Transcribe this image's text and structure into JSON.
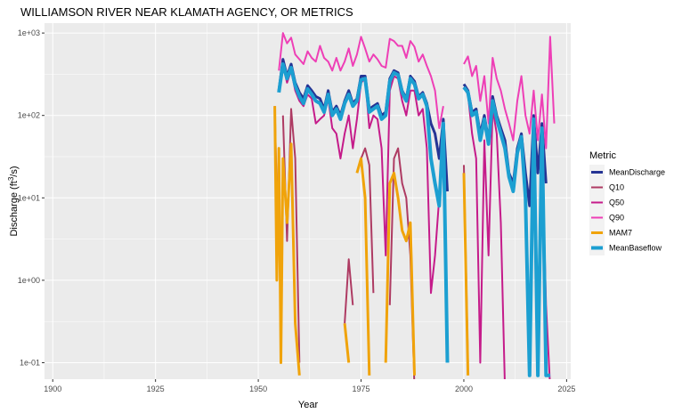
{
  "chart_data": {
    "type": "line",
    "title": "WILLIAMSON RIVER NEAR KLAMATH AGENCY, OR  METRICS",
    "xlabel": "Year",
    "ylabel": "Discharge (ft3/s)",
    "ylabel_parts": {
      "main": "Discharge (ft",
      "sup": "3",
      "tail": "/s)"
    },
    "xlim": [
      1898,
      2026
    ],
    "ylim_log10": [
      -1.2,
      3.12
    ],
    "y_scale": "log10",
    "grid": true,
    "legend_position": "right",
    "legend_title": "Metric",
    "x_ticks": [
      1900,
      1925,
      1950,
      1975,
      2000,
      2025
    ],
    "x_tick_labels": [
      "1900",
      "1925",
      "1950",
      "1975",
      "2000",
      "2025"
    ],
    "y_ticks": [
      0.1,
      1,
      10,
      100,
      1000
    ],
    "y_tick_labels": [
      "1e-01",
      "1e+00",
      "1e+01",
      "1e+02",
      "1e+03"
    ],
    "series": [
      {
        "name": "MeanDischarge",
        "color": "#253494",
        "width": 3,
        "x": [
          1955,
          1956,
          1957,
          1958,
          1959,
          1960,
          1961,
          1962,
          1963,
          1964,
          1965,
          1966,
          1967,
          1968,
          1969,
          1970,
          1971,
          1972,
          1973,
          1974,
          1975,
          1976,
          1977,
          1978,
          1979,
          1980,
          1981,
          1982,
          1983,
          1984,
          1985,
          1986,
          1987,
          1988,
          1989,
          1990,
          1991,
          1992,
          1993,
          1994,
          1995,
          1996,
          1997,
          1998,
          1999,
          2000,
          2001,
          2002,
          2003,
          2004,
          2005,
          2006,
          2007,
          2008,
          2009,
          2010,
          2011,
          2012,
          2013,
          2014,
          2015,
          2016,
          2017,
          2018,
          2019,
          2020,
          2021,
          2022
        ],
        "y": [
          200,
          480,
          300,
          420,
          250,
          190,
          160,
          230,
          200,
          170,
          160,
          120,
          200,
          110,
          130,
          100,
          150,
          200,
          140,
          160,
          300,
          300,
          120,
          130,
          140,
          100,
          110,
          280,
          350,
          330,
          200,
          160,
          300,
          260,
          170,
          190,
          140,
          80,
          60,
          30,
          90,
          12,
          null,
          null,
          null,
          240,
          200,
          110,
          120,
          60,
          100,
          50,
          170,
          100,
          70,
          50,
          20,
          15,
          40,
          60,
          20,
          8,
          100,
          20,
          80,
          15,
          null,
          null
        ]
      },
      {
        "name": "Q10",
        "color": "#ae3b63",
        "width": 2,
        "x": [
          1954,
          1954.5,
          1955,
          1956,
          1957,
          1958,
          1959,
          1960,
          1961,
          1962,
          1963,
          1964,
          1965,
          1966,
          1967,
          1968,
          1969,
          1970,
          1971,
          1972,
          1973,
          1974,
          1975,
          1976,
          1977,
          1978,
          1979,
          1980,
          1981,
          1982,
          1983,
          1984,
          1985,
          1986,
          1987,
          1988,
          1989,
          1990,
          1991,
          1992,
          1993,
          1994,
          1995,
          1996,
          1997,
          1998,
          1999,
          2000,
          2001,
          2002,
          2003,
          2004,
          2005,
          2006,
          2007,
          2008,
          2009,
          2010,
          2011,
          2012,
          2013,
          2014,
          2015,
          2016,
          2017,
          2018,
          2019,
          2020,
          2021,
          2022
        ],
        "y": [
          130,
          10,
          null,
          100,
          3,
          120,
          30,
          0.1,
          null,
          null,
          null,
          null,
          null,
          null,
          null,
          null,
          null,
          null,
          0.3,
          1.8,
          0.5,
          null,
          30,
          40,
          25,
          0.7,
          null,
          null,
          null,
          0.5,
          30,
          40,
          15,
          10,
          2,
          0.05,
          null,
          null,
          null,
          null,
          null,
          null,
          null,
          null,
          null,
          null,
          null,
          25,
          0.1,
          null,
          null,
          null,
          null,
          null,
          null,
          null,
          null,
          null,
          null,
          null,
          null,
          null,
          null,
          null,
          null,
          null,
          null,
          null,
          null,
          null
        ]
      },
      {
        "name": "Q50",
        "color": "#c51b8a",
        "width": 2,
        "x": [
          1955,
          1956,
          1957,
          1958,
          1959,
          1960,
          1961,
          1962,
          1963,
          1964,
          1965,
          1966,
          1967,
          1968,
          1969,
          1970,
          1971,
          1972,
          1973,
          1974,
          1975,
          1976,
          1977,
          1978,
          1979,
          1980,
          1981,
          1982,
          1983,
          1984,
          1985,
          1986,
          1987,
          1988,
          1989,
          1990,
          1991,
          1992,
          1993,
          1994,
          1995,
          1996,
          1997,
          1998,
          1999,
          2000,
          2001,
          2002,
          2003,
          2004,
          2005,
          2006,
          2007,
          2008,
          2009,
          2010,
          2011,
          2012,
          2013,
          2014,
          2015,
          2016,
          2017,
          2018,
          2019,
          2020,
          2021,
          2022
        ],
        "y": [
          200,
          400,
          250,
          350,
          200,
          150,
          130,
          180,
          160,
          80,
          90,
          100,
          160,
          70,
          60,
          30,
          60,
          100,
          40,
          90,
          250,
          280,
          70,
          100,
          90,
          40,
          2,
          200,
          300,
          280,
          150,
          100,
          200,
          200,
          100,
          120,
          40,
          0.7,
          2,
          10,
          60,
          0.1,
          null,
          null,
          null,
          220,
          180,
          60,
          30,
          0.1,
          50,
          2,
          120,
          60,
          5,
          0.05,
          null,
          null,
          null,
          null,
          null,
          null,
          60,
          0.3,
          40,
          0.5,
          0.05,
          null
        ]
      },
      {
        "name": "Q90",
        "color": "#ee3fb6",
        "width": 2,
        "x": [
          1955,
          1956,
          1957,
          1958,
          1959,
          1960,
          1961,
          1962,
          1963,
          1964,
          1965,
          1966,
          1967,
          1968,
          1969,
          1970,
          1971,
          1972,
          1973,
          1974,
          1975,
          1976,
          1977,
          1978,
          1979,
          1980,
          1981,
          1982,
          1983,
          1984,
          1985,
          1986,
          1987,
          1988,
          1989,
          1990,
          1991,
          1992,
          1993,
          1994,
          1995,
          1996,
          1997,
          1998,
          1999,
          2000,
          2001,
          2002,
          2003,
          2004,
          2005,
          2006,
          2007,
          2008,
          2009,
          2010,
          2011,
          2012,
          2013,
          2014,
          2015,
          2016,
          2017,
          2018,
          2019,
          2020,
          2021,
          2022
        ],
        "y": [
          350,
          1000,
          750,
          880,
          550,
          480,
          420,
          600,
          500,
          450,
          700,
          500,
          450,
          350,
          500,
          350,
          450,
          650,
          400,
          550,
          900,
          650,
          450,
          550,
          480,
          400,
          380,
          850,
          800,
          700,
          700,
          500,
          800,
          680,
          450,
          550,
          400,
          300,
          200,
          70,
          130,
          null,
          null,
          null,
          null,
          420,
          520,
          300,
          400,
          150,
          300,
          80,
          500,
          280,
          200,
          120,
          80,
          50,
          150,
          300,
          100,
          60,
          200,
          50,
          180,
          40,
          900,
          80
        ]
      },
      {
        "name": "MAM7",
        "color": "#f0a30a",
        "width": 3,
        "x": [
          1954,
          1954.5,
          1955,
          1955.5,
          1956,
          1957,
          1958,
          1959,
          1960,
          1961,
          1962,
          1963,
          1964,
          1965,
          1966,
          1967,
          1968,
          1969,
          1970,
          1971,
          1972,
          1973,
          1974,
          1975,
          1976,
          1977,
          1978,
          1979,
          1980,
          1981,
          1982,
          1983,
          1984,
          1985,
          1986,
          1987,
          1988,
          1989,
          1990,
          1991,
          1992,
          1993,
          1994,
          1995,
          1996,
          1997,
          1998,
          1999,
          2000,
          2001,
          2002,
          2003,
          2004,
          2005,
          2006,
          2007,
          2008,
          2009,
          2010,
          2011,
          2012,
          2013,
          2014,
          2015,
          2016,
          2017,
          2018,
          2019,
          2020,
          2021,
          2022
        ],
        "y": [
          130,
          1,
          40,
          0.1,
          30,
          5,
          45,
          0.3,
          0.07,
          null,
          null,
          null,
          null,
          null,
          null,
          null,
          null,
          null,
          null,
          0.3,
          0.1,
          null,
          20,
          30,
          10,
          0.07,
          null,
          null,
          null,
          0.1,
          15,
          20,
          10,
          4,
          3,
          5,
          0.07,
          null,
          null,
          null,
          null,
          null,
          null,
          null,
          null,
          null,
          null,
          null,
          20,
          0.07,
          null,
          null,
          null,
          null,
          null,
          null,
          null,
          null,
          null,
          null,
          null,
          null,
          null,
          null,
          null,
          null,
          null,
          null,
          null,
          null,
          null
        ]
      },
      {
        "name": "MeanBaseflow",
        "color": "#1c9fd1",
        "width": 4,
        "x": [
          1955,
          1956,
          1957,
          1958,
          1959,
          1960,
          1961,
          1962,
          1963,
          1964,
          1965,
          1966,
          1967,
          1968,
          1969,
          1970,
          1971,
          1972,
          1973,
          1974,
          1975,
          1976,
          1977,
          1978,
          1979,
          1980,
          1981,
          1982,
          1983,
          1984,
          1985,
          1986,
          1987,
          1988,
          1989,
          1990,
          1991,
          1992,
          1993,
          1994,
          1995,
          1996,
          1997,
          1998,
          1999,
          2000,
          2001,
          2002,
          2003,
          2004,
          2005,
          2006,
          2007,
          2008,
          2009,
          2010,
          2011,
          2012,
          2013,
          2014,
          2015,
          2016,
          2017,
          2018,
          2019,
          2020,
          2021,
          2022
        ],
        "y": [
          190,
          420,
          280,
          380,
          230,
          170,
          140,
          210,
          180,
          150,
          140,
          110,
          180,
          100,
          120,
          90,
          140,
          180,
          130,
          150,
          270,
          280,
          110,
          120,
          130,
          90,
          100,
          260,
          330,
          310,
          190,
          150,
          280,
          240,
          160,
          180,
          130,
          30,
          15,
          8,
          80,
          0.1,
          null,
          null,
          null,
          220,
          190,
          100,
          110,
          50,
          90,
          45,
          150,
          90,
          60,
          40,
          18,
          12,
          35,
          55,
          10,
          0.07,
          90,
          0.07,
          70,
          0.07,
          0.07,
          null
        ]
      }
    ]
  }
}
